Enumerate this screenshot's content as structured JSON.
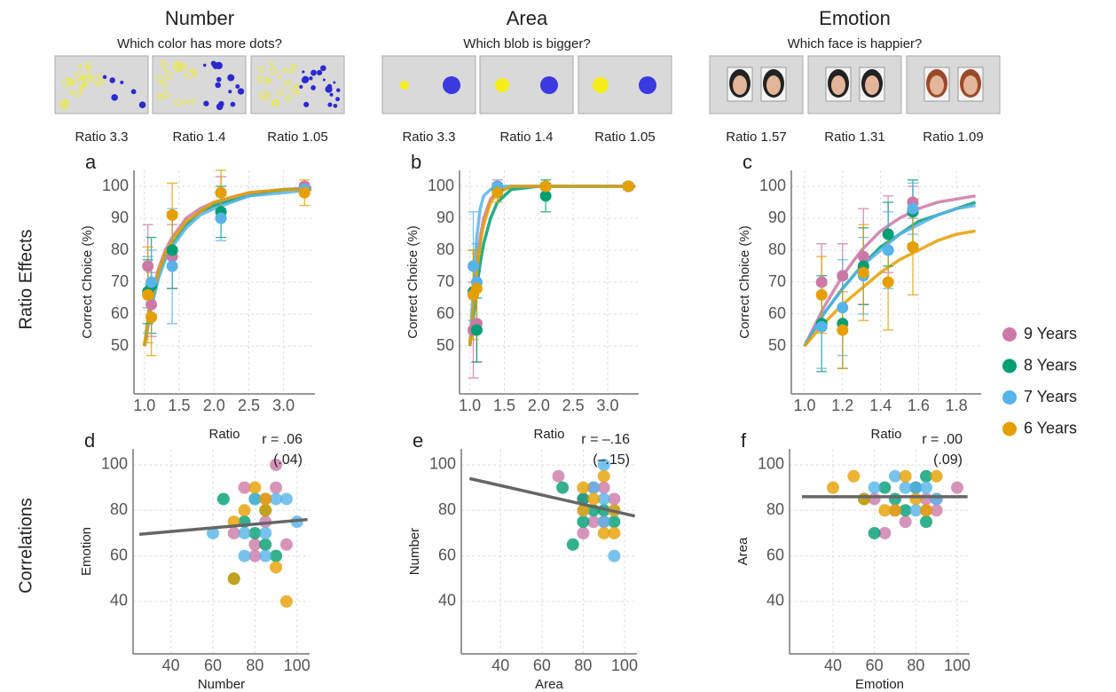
{
  "stimuli": {
    "columns": [
      {
        "title": "Number",
        "question": "Which color has more dots?",
        "ratios": [
          "Ratio 3.3",
          "Ratio 1.4",
          "Ratio 1.05"
        ]
      },
      {
        "title": "Area",
        "question": "Which blob is bigger?",
        "ratios": [
          "Ratio 3.3",
          "Ratio 1.4",
          "Ratio 1.05"
        ]
      },
      {
        "title": "Emotion",
        "question": "Which face is happier?",
        "ratios": [
          "Ratio 1.57",
          "Ratio 1.31",
          "Ratio 1.09"
        ]
      }
    ]
  },
  "rows": [
    "Ratio Effects",
    "Correlations"
  ],
  "chart_data": [
    {
      "type": "line",
      "label": "a",
      "x_label": "Ratio",
      "y_label": "Correct Choice (%)",
      "xlim": [
        0.85,
        3.45
      ],
      "ylim": [
        35,
        105
      ],
      "grid": true,
      "xticks": [
        {
          "value": 1,
          "label": "1.0"
        },
        {
          "value": 1.5,
          "label": "1.5"
        },
        {
          "value": 2,
          "label": "2.0"
        },
        {
          "value": 2.5,
          "label": "2.5"
        },
        {
          "value": 3,
          "label": "3.0"
        }
      ],
      "yticks": [
        50,
        60,
        70,
        80,
        90,
        100
      ],
      "x": [
        1.05,
        1.1,
        1.4,
        2.1,
        3.3
      ],
      "fit_x": [
        1.0,
        1.05,
        1.1,
        1.2,
        1.3,
        1.4,
        1.6,
        1.8,
        2.0,
        2.5,
        3.0,
        3.4
      ],
      "series": [
        {
          "name": "9 Years",
          "color": "#cc79a7",
          "values": [
            75,
            63,
            78,
            98,
            100
          ],
          "errors": [
            13,
            10,
            10,
            5,
            1
          ],
          "fit": [
            50,
            58,
            65,
            74,
            80,
            84,
            90,
            93,
            95,
            98,
            99,
            99.5
          ]
        },
        {
          "name": "8 Years",
          "color": "#009e73",
          "values": [
            67,
            69,
            80,
            92,
            99
          ],
          "errors": [
            10,
            15,
            12,
            8,
            1
          ],
          "fit": [
            50,
            57,
            63,
            72,
            78,
            82,
            88,
            92,
            94,
            97,
            99,
            99
          ]
        },
        {
          "name": "7 Years",
          "color": "#56b4e9",
          "values": [
            66,
            70,
            75,
            90,
            99
          ],
          "errors": [
            12,
            10,
            18,
            7,
            1
          ],
          "fit": [
            50,
            56,
            62,
            71,
            77,
            81,
            87,
            91,
            93,
            97,
            98,
            99
          ]
        },
        {
          "name": "6 Years",
          "color": "#e69f00",
          "values": [
            66,
            59,
            91,
            98,
            98
          ],
          "errors": [
            15,
            12,
            10,
            7,
            4
          ],
          "fit": [
            50,
            58,
            64,
            73,
            79,
            83,
            89,
            92,
            95,
            98,
            99,
            99
          ]
        }
      ]
    },
    {
      "type": "line",
      "label": "b",
      "x_label": "Ratio",
      "y_label": "Correct Choice (%)",
      "xlim": [
        0.85,
        3.45
      ],
      "ylim": [
        35,
        105
      ],
      "grid": true,
      "xticks": [
        {
          "value": 1,
          "label": "1.0"
        },
        {
          "value": 1.5,
          "label": "1.5"
        },
        {
          "value": 2,
          "label": "2.0"
        },
        {
          "value": 2.5,
          "label": "2.5"
        },
        {
          "value": 3,
          "label": "3.0"
        }
      ],
      "yticks": [
        50,
        60,
        70,
        80,
        90,
        100
      ],
      "x": [
        1.05,
        1.1,
        1.4,
        2.1,
        3.3
      ],
      "fit_x": [
        1.0,
        1.05,
        1.1,
        1.15,
        1.2,
        1.3,
        1.4,
        1.6,
        2.0,
        2.5,
        3.0,
        3.4
      ],
      "series": [
        {
          "color": "#cc79a7",
          "values": [
            55,
            57,
            100,
            100,
            100
          ],
          "errors": [
            15,
            12,
            2,
            1,
            1
          ],
          "fit": [
            50,
            63,
            75,
            84,
            90,
            96,
            98,
            100,
            100,
            100,
            100,
            100
          ]
        },
        {
          "color": "#009e73",
          "values": [
            67,
            55,
            99,
            97,
            100
          ],
          "errors": [
            13,
            10,
            2,
            5,
            1
          ],
          "fit": [
            50,
            59,
            68,
            76,
            82,
            90,
            95,
            99,
            100,
            100,
            100,
            100
          ]
        },
        {
          "color": "#56b4e9",
          "values": [
            75,
            70,
            100,
            100,
            100
          ],
          "errors": [
            17,
            12,
            1,
            1,
            1
          ],
          "fit": [
            50,
            68,
            84,
            93,
            97,
            99,
            100,
            100,
            100,
            100,
            100,
            100
          ]
        },
        {
          "color": "#e69f00",
          "values": [
            66,
            68,
            98,
            100,
            100
          ],
          "errors": [
            14,
            11,
            3,
            1,
            1
          ],
          "fit": [
            50,
            62,
            73,
            82,
            88,
            95,
            98,
            100,
            100,
            100,
            100,
            100
          ]
        }
      ]
    },
    {
      "type": "line",
      "label": "c",
      "x_label": "Ratio",
      "y_label": "Correct Choice (%)",
      "xlim": [
        0.93,
        1.93
      ],
      "ylim": [
        35,
        105
      ],
      "grid": true,
      "xticks": [
        {
          "value": 1,
          "label": "1.0"
        },
        1.2,
        1.4,
        1.6,
        1.8
      ],
      "yticks": [
        50,
        60,
        70,
        80,
        90,
        100
      ],
      "x": [
        1.09,
        1.2,
        1.31,
        1.44,
        1.57
      ],
      "fit_x": [
        1.0,
        1.1,
        1.2,
        1.3,
        1.4,
        1.5,
        1.6,
        1.7,
        1.8,
        1.9
      ],
      "series": [
        {
          "color": "#cc79a7",
          "values": [
            70,
            72,
            78,
            85,
            95
          ],
          "errors": [
            12,
            10,
            15,
            12,
            5
          ],
          "fit": [
            50,
            62,
            72,
            80,
            86,
            90,
            93,
            95,
            96,
            97
          ]
        },
        {
          "color": "#009e73",
          "values": [
            57,
            57,
            75,
            85,
            92
          ],
          "errors": [
            15,
            14,
            12,
            10,
            10
          ],
          "fit": [
            50,
            60,
            68,
            75,
            81,
            85,
            89,
            91,
            93,
            95
          ]
        },
        {
          "color": "#56b4e9",
          "values": [
            56,
            62,
            72,
            80,
            93
          ],
          "errors": [
            13,
            15,
            12,
            12,
            8
          ],
          "fit": [
            50,
            60,
            68,
            75,
            80,
            85,
            88,
            91,
            93,
            94
          ]
        },
        {
          "color": "#e69f00",
          "values": [
            66,
            55,
            73,
            70,
            81
          ],
          "errors": [
            12,
            12,
            15,
            15,
            15
          ],
          "fit": [
            50,
            57,
            63,
            68,
            73,
            77,
            80,
            83,
            85,
            86
          ]
        }
      ]
    },
    {
      "type": "scatter",
      "label": "d",
      "x_label": "Number",
      "y_label": "Emotion",
      "xlim": [
        22,
        106
      ],
      "ylim": [
        17,
        107
      ],
      "grid": true,
      "xticks": [
        40,
        60,
        80,
        100
      ],
      "yticks": [
        40,
        60,
        80,
        100
      ],
      "annotation": [
        "r = .06",
        "(.04)"
      ],
      "trend": {
        "x": [
          25,
          105
        ],
        "y": [
          69.5,
          76
        ]
      },
      "series": [
        {
          "color": "#cc79a7",
          "x": [
            75,
            85,
            90,
            70,
            85,
            80,
            95,
            90,
            80
          ],
          "values": [
            90,
            85,
            100,
            70,
            75,
            65,
            65,
            90,
            60
          ]
        },
        {
          "color": "#009e73",
          "x": [
            65,
            70,
            80,
            85,
            90,
            75,
            85,
            80
          ],
          "values": [
            85,
            50,
            70,
            80,
            60,
            75,
            65,
            85
          ]
        },
        {
          "color": "#56b4e9",
          "x": [
            60,
            75,
            80,
            85,
            90,
            95,
            100,
            85,
            75
          ],
          "values": [
            70,
            60,
            85,
            70,
            85,
            85,
            75,
            60,
            70
          ]
        },
        {
          "color": "#e69f00",
          "x": [
            70,
            75,
            80,
            85,
            90,
            95,
            70,
            85
          ],
          "values": [
            50,
            80,
            90,
            80,
            55,
            40,
            75,
            85
          ]
        }
      ]
    },
    {
      "type": "scatter",
      "label": "e",
      "x_label": "Area",
      "y_label": "Number",
      "xlim": [
        21,
        106
      ],
      "ylim": [
        17,
        107
      ],
      "grid": true,
      "xticks": [
        40,
        60,
        80,
        100
      ],
      "yticks": [
        40,
        60,
        80,
        100
      ],
      "annotation": [
        "r = –.16",
        "(–.15)"
      ],
      "trend": {
        "x": [
          25,
          105
        ],
        "y": [
          94,
          77.5
        ]
      },
      "series": [
        {
          "color": "#cc79a7",
          "x": [
            68,
            80,
            85,
            90,
            90,
            85,
            80,
            95
          ],
          "values": [
            95,
            85,
            90,
            90,
            75,
            75,
            70,
            85
          ]
        },
        {
          "color": "#009e73",
          "x": [
            70,
            75,
            80,
            90,
            85,
            95,
            80
          ],
          "values": [
            90,
            65,
            85,
            80,
            80,
            75,
            75
          ]
        },
        {
          "color": "#56b4e9",
          "x": [
            90,
            85,
            90,
            95,
            95,
            80,
            90
          ],
          "values": [
            100,
            90,
            85,
            60,
            80,
            80,
            75
          ]
        },
        {
          "color": "#e69f00",
          "x": [
            80,
            80,
            85,
            90,
            95,
            90,
            95
          ],
          "values": [
            90,
            80,
            85,
            95,
            70,
            70,
            80
          ]
        }
      ]
    },
    {
      "type": "scatter",
      "label": "f",
      "x_label": "Emotion",
      "y_label": "Area",
      "xlim": [
        19,
        106
      ],
      "ylim": [
        17,
        107
      ],
      "grid": true,
      "xticks": [
        40,
        60,
        80,
        100
      ],
      "yticks": [
        40,
        60,
        80,
        100
      ],
      "annotation": [
        "r = .00",
        "(.09)"
      ],
      "trend": {
        "x": [
          25,
          105
        ],
        "y": [
          86,
          86
        ]
      },
      "series": [
        {
          "color": "#cc79a7",
          "x": [
            60,
            65,
            70,
            75,
            85,
            90,
            90,
            100,
            80,
            85
          ],
          "values": [
            85,
            70,
            80,
            75,
            80,
            80,
            85,
            90,
            90,
            85
          ]
        },
        {
          "color": "#009e73",
          "x": [
            55,
            60,
            65,
            70,
            80,
            85,
            85,
            75
          ],
          "values": [
            85,
            70,
            90,
            85,
            90,
            95,
            75,
            80
          ]
        },
        {
          "color": "#56b4e9",
          "x": [
            60,
            70,
            75,
            80,
            85,
            90,
            80
          ],
          "values": [
            90,
            95,
            90,
            90,
            90,
            85,
            80
          ]
        },
        {
          "color": "#e69f00",
          "x": [
            40,
            50,
            55,
            65,
            75,
            80,
            90,
            85,
            70
          ],
          "values": [
            90,
            95,
            85,
            80,
            95,
            85,
            95,
            80,
            80
          ]
        }
      ]
    }
  ]
}
